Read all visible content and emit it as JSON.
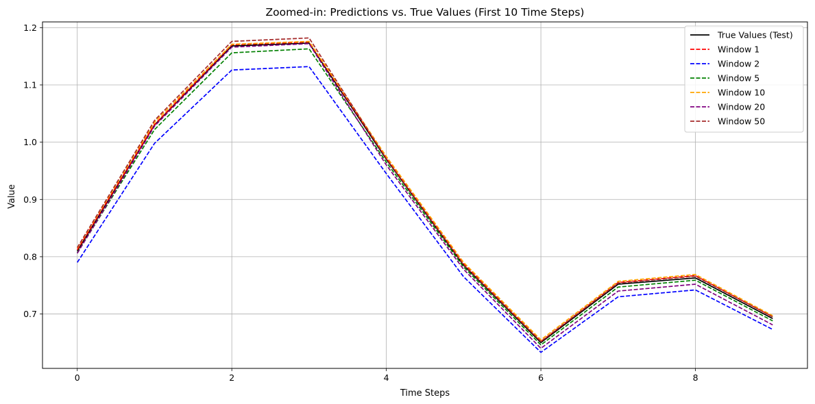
{
  "chart_data": {
    "type": "line",
    "title": "Zoomed-in: Predictions vs. True Values (First 10 Time Steps)",
    "xlabel": "Time Steps",
    "ylabel": "Value",
    "xlim": [
      -0.45,
      9.45
    ],
    "ylim": [
      0.605,
      1.21
    ],
    "xticks": [
      0,
      2,
      4,
      6,
      8
    ],
    "yticks": [
      0.7,
      0.8,
      0.9,
      1.0,
      1.1,
      1.2
    ],
    "ytick_labels": [
      "0.7",
      "0.8",
      "0.9",
      "1.0",
      "1.1",
      "1.2"
    ],
    "grid": true,
    "legend_position": "top-right",
    "x": [
      0,
      1,
      2,
      3,
      4,
      5,
      6,
      7,
      8,
      9
    ],
    "series": [
      {
        "name": "True Values (Test)",
        "color": "#000000",
        "dash": "solid",
        "values": [
          0.81,
          1.03,
          1.168,
          1.173,
          0.97,
          0.785,
          0.65,
          0.752,
          0.763,
          0.692
        ]
      },
      {
        "name": "Window 1",
        "color": "#ff0000",
        "dash": "dashed",
        "values": [
          0.812,
          1.031,
          1.17,
          1.175,
          0.972,
          0.788,
          0.652,
          0.755,
          0.767,
          0.695
        ]
      },
      {
        "name": "Window 2",
        "color": "#0000ff",
        "dash": "dashed",
        "values": [
          0.79,
          0.998,
          1.126,
          1.132,
          0.945,
          0.765,
          0.633,
          0.73,
          0.742,
          0.673
        ]
      },
      {
        "name": "Window 5",
        "color": "#008000",
        "dash": "dashed",
        "values": [
          0.807,
          1.022,
          1.156,
          1.163,
          0.965,
          0.782,
          0.646,
          0.747,
          0.759,
          0.688
        ]
      },
      {
        "name": "Window 10",
        "color": "#ffa500",
        "dash": "dashed",
        "values": [
          0.815,
          1.035,
          1.171,
          1.176,
          0.975,
          0.79,
          0.655,
          0.757,
          0.769,
          0.697
        ]
      },
      {
        "name": "Window 20",
        "color": "#800080",
        "dash": "dashed",
        "values": [
          0.806,
          1.028,
          1.166,
          1.172,
          0.96,
          0.778,
          0.64,
          0.74,
          0.752,
          0.681
        ]
      },
      {
        "name": "Window 50",
        "color": "#a52a2a",
        "dash": "dashed",
        "values": [
          0.816,
          1.038,
          1.176,
          1.182,
          0.971,
          0.786,
          0.652,
          0.754,
          0.766,
          0.695
        ]
      }
    ]
  }
}
